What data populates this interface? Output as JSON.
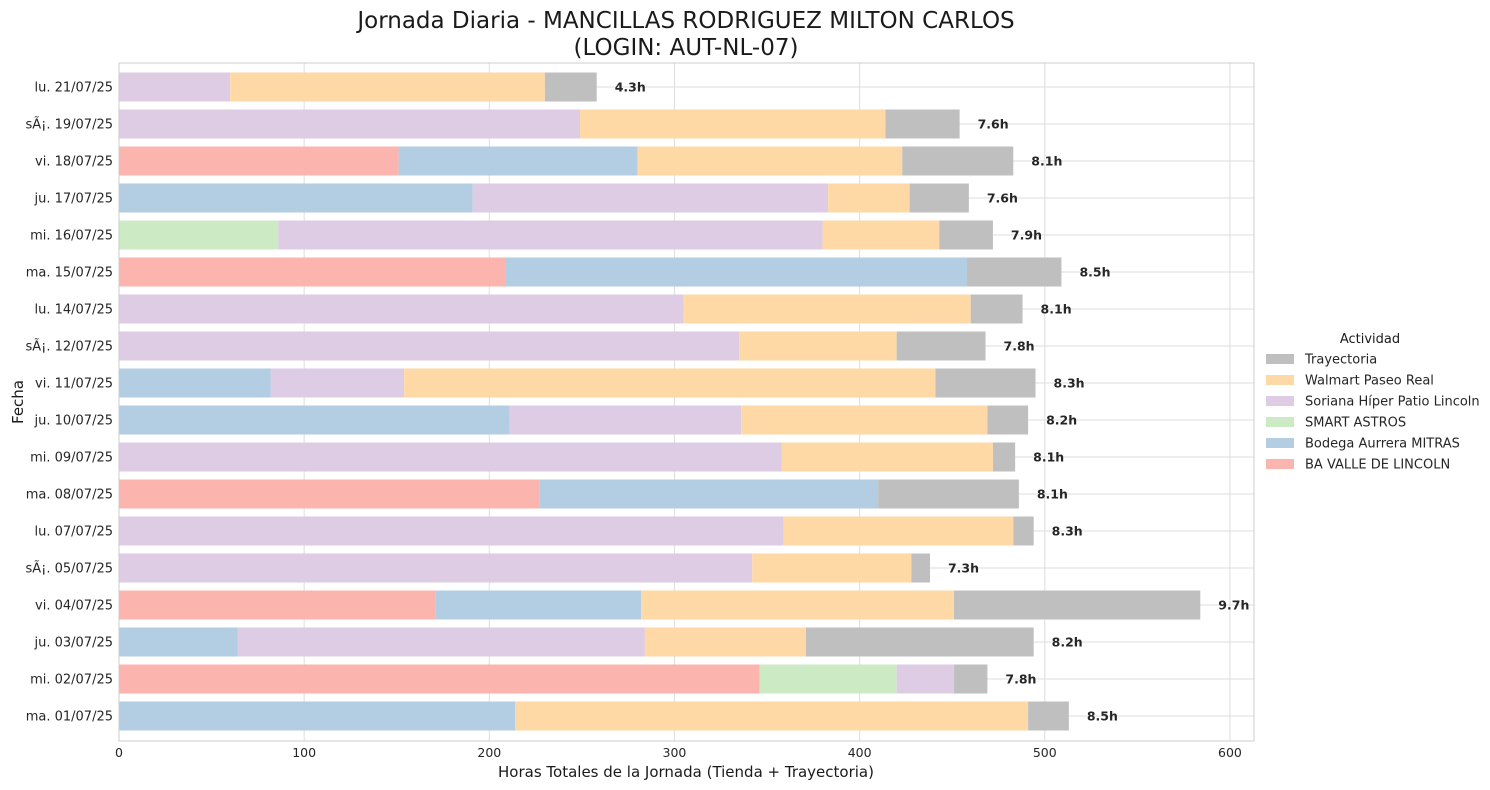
{
  "chart_data": {
    "type": "bar",
    "orientation": "horizontal",
    "stacked": true,
    "title_line1": "Jornada Diaria - MANCILLAS RODRIGUEZ MILTON CARLOS",
    "title_line2": "(LOGIN: AUT-NL-07)",
    "xlabel": "Horas Totales de la Jornada (Tienda + Trayectoria)",
    "ylabel": "Fecha",
    "xlim": [
      0,
      613
    ],
    "xticks": [
      "0",
      "100",
      "200",
      "300",
      "400",
      "500",
      "600"
    ],
    "grid": true,
    "legend_title": "Actividad",
    "legend_position": "right",
    "legend_order": [
      "Trayectoria",
      "Walmart Paseo Real",
      "Soriana Híper Patio Lincoln",
      "SMART ASTROS",
      "Bodega Aurrera MITRAS",
      "BA VALLE DE LINCOLN"
    ],
    "colors": {
      "BA VALLE DE LINCOLN": "#fbb4ae",
      "Bodega Aurrera MITRAS": "#b3cde3",
      "SMART ASTROS": "#ccebc5",
      "Soriana Híper Patio Lincoln": "#decbe4",
      "Walmart Paseo Real": "#fed9a6",
      "Trayectoria": "#bfbfbf"
    },
    "stack_order": [
      "BA VALLE DE LINCOLN",
      "Bodega Aurrera MITRAS",
      "SMART ASTROS",
      "Soriana Híper Patio Lincoln",
      "Walmart Paseo Real",
      "Trayectoria"
    ],
    "rows": [
      {
        "date": "lu. 21/07/25",
        "total_label": "4.3h",
        "values": {
          "Soriana Híper Patio Lincoln": 60,
          "Walmart Paseo Real": 170,
          "Trayectoria": 28
        }
      },
      {
        "date": "sÃ¡. 19/07/25",
        "total_label": "7.6h",
        "values": {
          "Soriana Híper Patio Lincoln": 249,
          "Walmart Paseo Real": 165,
          "Trayectoria": 40
        }
      },
      {
        "date": "vi. 18/07/25",
        "total_label": "8.1h",
        "values": {
          "BA VALLE DE LINCOLN": 151,
          "Bodega Aurrera MITRAS": 129,
          "Walmart Paseo Real": 143,
          "Trayectoria": 60
        }
      },
      {
        "date": "ju. 17/07/25",
        "total_label": "7.6h",
        "values": {
          "Bodega Aurrera MITRAS": 191,
          "Soriana Híper Patio Lincoln": 192,
          "Walmart Paseo Real": 44,
          "Trayectoria": 32
        }
      },
      {
        "date": "mi. 16/07/25",
        "total_label": "7.9h",
        "values": {
          "SMART ASTROS": 86,
          "Soriana Híper Patio Lincoln": 294,
          "Walmart Paseo Real": 63,
          "Trayectoria": 29
        }
      },
      {
        "date": "ma. 15/07/25",
        "total_label": "8.5h",
        "values": {
          "BA VALLE DE LINCOLN": 209,
          "Bodega Aurrera MITRAS": 249,
          "Trayectoria": 51
        }
      },
      {
        "date": "lu. 14/07/25",
        "total_label": "8.1h",
        "values": {
          "Soriana Híper Patio Lincoln": 305,
          "Walmart Paseo Real": 155,
          "Trayectoria": 28
        }
      },
      {
        "date": "sÃ¡. 12/07/25",
        "total_label": "7.8h",
        "values": {
          "Soriana Híper Patio Lincoln": 335,
          "Walmart Paseo Real": 85,
          "Trayectoria": 48
        }
      },
      {
        "date": "vi. 11/07/25",
        "total_label": "8.3h",
        "values": {
          "Bodega Aurrera MITRAS": 82,
          "Soriana Híper Patio Lincoln": 72,
          "Walmart Paseo Real": 287,
          "Trayectoria": 54
        }
      },
      {
        "date": "ju. 10/07/25",
        "total_label": "8.2h",
        "values": {
          "Bodega Aurrera MITRAS": 211,
          "Soriana Híper Patio Lincoln": 125,
          "Walmart Paseo Real": 133,
          "Trayectoria": 22
        }
      },
      {
        "date": "mi. 09/07/25",
        "total_label": "8.1h",
        "values": {
          "Soriana Híper Patio Lincoln": 358,
          "Walmart Paseo Real": 114,
          "Trayectoria": 12
        }
      },
      {
        "date": "ma. 08/07/25",
        "total_label": "8.1h",
        "values": {
          "BA VALLE DE LINCOLN": 227,
          "Bodega Aurrera MITRAS": 183,
          "Trayectoria": 76
        }
      },
      {
        "date": "lu. 07/07/25",
        "total_label": "8.3h",
        "values": {
          "Soriana Híper Patio Lincoln": 359,
          "Walmart Paseo Real": 124,
          "Trayectoria": 11
        }
      },
      {
        "date": "sÃ¡. 05/07/25",
        "total_label": "7.3h",
        "values": {
          "Soriana Híper Patio Lincoln": 342,
          "Walmart Paseo Real": 86,
          "Trayectoria": 10
        }
      },
      {
        "date": "vi. 04/07/25",
        "total_label": "9.7h",
        "values": {
          "BA VALLE DE LINCOLN": 171,
          "Bodega Aurrera MITRAS": 111,
          "Walmart Paseo Real": 169,
          "Trayectoria": 133
        }
      },
      {
        "date": "ju. 03/07/25",
        "total_label": "8.2h",
        "values": {
          "Bodega Aurrera MITRAS": 64,
          "Soriana Híper Patio Lincoln": 220,
          "Walmart Paseo Real": 87,
          "Trayectoria": 123
        }
      },
      {
        "date": "mi. 02/07/25",
        "total_label": "7.8h",
        "values": {
          "BA VALLE DE LINCOLN": 346,
          "SMART ASTROS": 74,
          "Soriana Híper Patio Lincoln": 31,
          "Trayectoria": 18
        }
      },
      {
        "date": "ma. 01/07/25",
        "total_label": "8.5h",
        "values": {
          "Bodega Aurrera MITRAS": 214,
          "Walmart Paseo Real": 277,
          "Trayectoria": 22
        }
      }
    ]
  }
}
